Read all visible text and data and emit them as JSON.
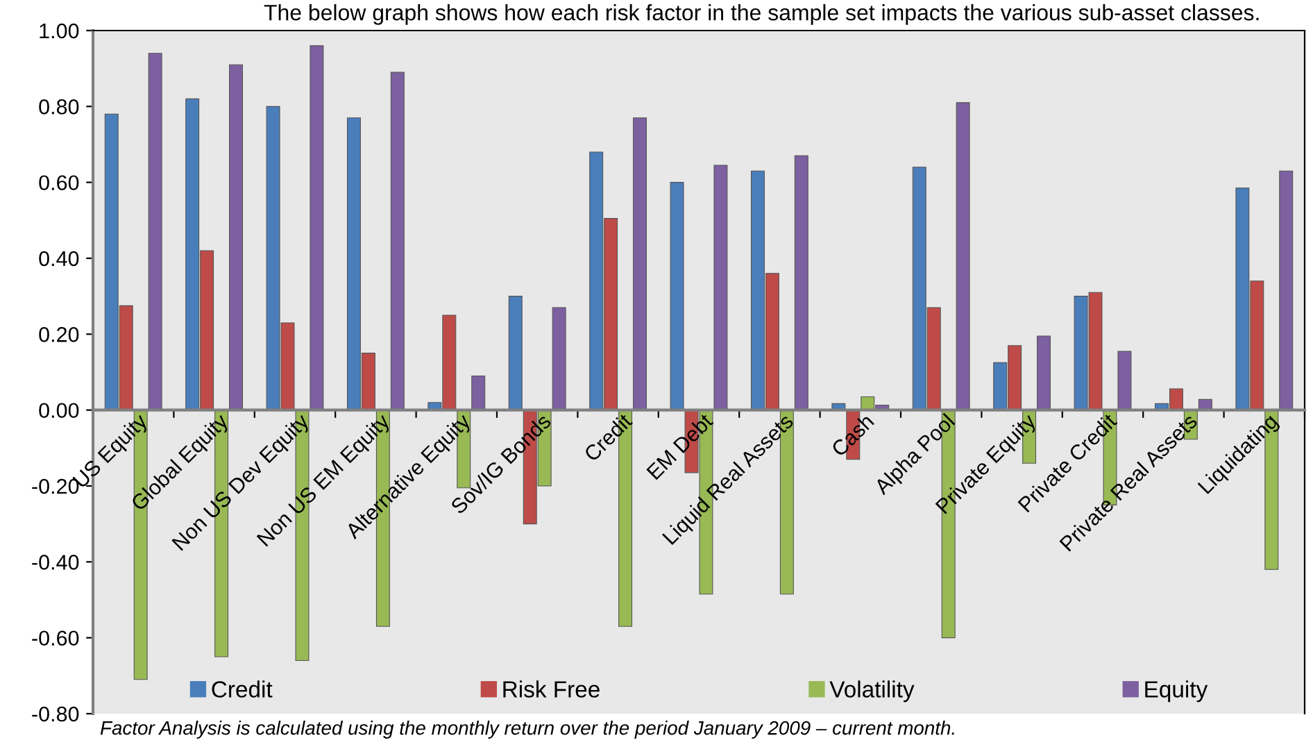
{
  "chart_data": {
    "type": "bar",
    "title": "The below graph shows how each risk factor in the sample set impacts the various sub-asset classes.",
    "categories": [
      "US Equity",
      "Global Equity",
      "Non US Dev Equity",
      "Non US EM Equity",
      "Alternative Equity",
      "Sov/IG Bonds",
      "Credit",
      "EM Debt",
      "Liquid Real Assets",
      "Cash",
      "Alpha Pool",
      "Private Equity",
      "Private Credit",
      "Private Real Assets",
      "Liquidating"
    ],
    "series": [
      {
        "name": "Credit",
        "color": "#4a7ebb",
        "values": [
          0.78,
          0.82,
          0.8,
          0.77,
          0.02,
          0.3,
          0.68,
          0.6,
          0.63,
          0.017,
          0.64,
          0.125,
          0.3,
          0.017,
          0.585
        ]
      },
      {
        "name": "Risk Free",
        "color": "#be4b48",
        "values": [
          0.275,
          0.42,
          0.23,
          0.15,
          0.25,
          -0.3,
          0.505,
          -0.165,
          0.36,
          -0.13,
          0.27,
          0.17,
          0.31,
          0.056,
          0.34
        ]
      },
      {
        "name": "Volatility",
        "color": "#98b954",
        "values": [
          -0.71,
          -0.65,
          -0.66,
          -0.57,
          -0.205,
          -0.2,
          -0.57,
          -0.485,
          -0.485,
          0.035,
          -0.6,
          -0.14,
          -0.25,
          -0.077,
          -0.42
        ]
      },
      {
        "name": "Equity",
        "color": "#7d60a0",
        "values": [
          0.94,
          0.91,
          0.96,
          0.89,
          0.09,
          0.27,
          0.77,
          0.645,
          0.67,
          0.013,
          0.81,
          0.195,
          0.155,
          0.028,
          0.63
        ]
      }
    ],
    "ylim": [
      -0.8,
      1.0
    ],
    "yticks": [
      {
        "value": -0.8,
        "label": "-0.80"
      },
      {
        "value": -0.6,
        "label": "-0.60"
      },
      {
        "value": -0.4,
        "label": "-0.40"
      },
      {
        "value": -0.2,
        "label": "-0.20"
      },
      {
        "value": 0,
        "label": "0.00"
      },
      {
        "value": 0.2,
        "label": "0.20"
      },
      {
        "value": 0.4,
        "label": "0.40"
      },
      {
        "value": 0.6,
        "label": "0.60"
      },
      {
        "value": 0.8,
        "label": "0.80"
      },
      {
        "value": 1.0,
        "label": "1.00"
      }
    ],
    "grid": false,
    "legend": "bottom",
    "annotations": [
      "Factor Analysis is calculated using the monthly return over the period January 2009 – current month."
    ]
  }
}
